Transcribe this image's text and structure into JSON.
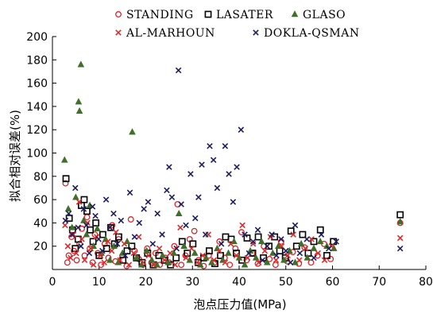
{
  "chart_data": {
    "type": "scatter",
    "title": "",
    "xlabel": "泡点压力值(MPa)",
    "ylabel": "拟合相对误差(%)",
    "xlim": [
      0,
      80
    ],
    "ylim": [
      0,
      200
    ],
    "xticks": [
      0,
      10,
      20,
      30,
      40,
      50,
      60,
      70,
      80
    ],
    "yticks": [
      20,
      40,
      60,
      80,
      100,
      120,
      140,
      160,
      180,
      200
    ],
    "grid": false,
    "legend_position": "top",
    "series": [
      {
        "name": "STANDING",
        "marker": "circle-open",
        "color": "#e0212b",
        "points": [
          [
            2.8,
            74
          ],
          [
            3.2,
            6
          ],
          [
            3.5,
            12
          ],
          [
            4.1,
            28
          ],
          [
            4.6,
            16
          ],
          [
            5.2,
            8
          ],
          [
            5.8,
            22
          ],
          [
            6.3,
            35
          ],
          [
            6.9,
            12
          ],
          [
            7.4,
            45
          ],
          [
            8.0,
            18
          ],
          [
            8.6,
            6
          ],
          [
            9.1,
            30
          ],
          [
            9.7,
            14
          ],
          [
            10.4,
            4
          ],
          [
            11.2,
            22
          ],
          [
            12.0,
            10
          ],
          [
            12.8,
            38
          ],
          [
            13.5,
            7
          ],
          [
            14.2,
            26
          ],
          [
            15.0,
            12
          ],
          [
            15.9,
            3
          ],
          [
            16.8,
            43
          ],
          [
            17.6,
            16
          ],
          [
            18.5,
            9
          ],
          [
            19.4,
            4
          ],
          [
            20.3,
            18
          ],
          [
            21.2,
            6
          ],
          [
            22.1,
            14
          ],
          [
            23.0,
            4
          ],
          [
            24.2,
            10
          ],
          [
            25.0,
            6
          ],
          [
            26.1,
            20
          ],
          [
            26.8,
            56
          ],
          [
            27.6,
            4
          ],
          [
            28.5,
            12
          ],
          [
            29.4,
            26
          ],
          [
            30.4,
            33
          ],
          [
            31.3,
            8
          ],
          [
            32.4,
            3
          ],
          [
            33.5,
            12
          ],
          [
            34.7,
            6
          ],
          [
            35.8,
            24
          ],
          [
            36.9,
            10
          ],
          [
            38.0,
            4
          ],
          [
            39.2,
            18
          ],
          [
            40.5,
            32
          ],
          [
            41.6,
            8
          ],
          [
            42.8,
            14
          ],
          [
            44.0,
            5
          ],
          [
            45.3,
            20
          ],
          [
            46.5,
            9
          ],
          [
            47.8,
            4
          ],
          [
            49.0,
            24
          ],
          [
            50.3,
            7
          ],
          [
            51.5,
            15
          ],
          [
            52.8,
            5
          ],
          [
            54.0,
            19
          ],
          [
            55.4,
            6
          ],
          [
            56.8,
            12
          ],
          [
            58.2,
            22
          ],
          [
            59.6,
            9
          ],
          [
            74.5,
            40
          ]
        ]
      },
      {
        "name": "LASATER",
        "marker": "square-open",
        "color": "#000000",
        "points": [
          [
            2.9,
            78
          ],
          [
            3.6,
            44
          ],
          [
            4.3,
            34
          ],
          [
            4.9,
            18
          ],
          [
            5.5,
            26
          ],
          [
            6.2,
            55
          ],
          [
            6.8,
            60
          ],
          [
            7.4,
            50
          ],
          [
            8.1,
            34
          ],
          [
            8.7,
            24
          ],
          [
            9.3,
            40
          ],
          [
            10.0,
            12
          ],
          [
            10.8,
            30
          ],
          [
            11.6,
            18
          ],
          [
            12.5,
            36
          ],
          [
            13.3,
            22
          ],
          [
            14.2,
            28
          ],
          [
            15.1,
            8
          ],
          [
            16.0,
            16
          ],
          [
            17.0,
            20
          ],
          [
            18.0,
            10
          ],
          [
            19.2,
            6
          ],
          [
            20.4,
            14
          ],
          [
            21.6,
            4
          ],
          [
            22.8,
            12
          ],
          [
            24.0,
            8
          ],
          [
            25.3,
            4
          ],
          [
            26.5,
            10
          ],
          [
            27.8,
            24
          ],
          [
            28.9,
            14
          ],
          [
            30.1,
            22
          ],
          [
            31.2,
            6
          ],
          [
            32.4,
            10
          ],
          [
            33.6,
            16
          ],
          [
            34.8,
            5
          ],
          [
            36.0,
            12
          ],
          [
            37.1,
            28
          ],
          [
            38.3,
            26
          ],
          [
            39.4,
            14
          ],
          [
            40.6,
            8
          ],
          [
            41.7,
            27
          ],
          [
            42.9,
            14
          ],
          [
            44.1,
            28
          ],
          [
            45.2,
            10
          ],
          [
            46.4,
            20
          ],
          [
            47.6,
            28
          ],
          [
            48.7,
            16
          ],
          [
            49.9,
            10
          ],
          [
            51.1,
            33
          ],
          [
            52.3,
            20
          ],
          [
            53.6,
            30
          ],
          [
            54.8,
            14
          ],
          [
            56.0,
            24
          ],
          [
            57.4,
            34
          ],
          [
            58.8,
            12
          ],
          [
            60.2,
            24
          ],
          [
            74.5,
            47
          ]
        ]
      },
      {
        "name": "GLASO",
        "marker": "triangle-filled",
        "color": "#3f6f2a",
        "points": [
          [
            2.6,
            94
          ],
          [
            3.4,
            52
          ],
          [
            4.2,
            36
          ],
          [
            5.0,
            62
          ],
          [
            5.6,
            144
          ],
          [
            5.8,
            136
          ],
          [
            6.1,
            176
          ],
          [
            6.7,
            42
          ],
          [
            7.3,
            30
          ],
          [
            8.0,
            55
          ],
          [
            8.8,
            20
          ],
          [
            9.6,
            35
          ],
          [
            10.5,
            14
          ],
          [
            11.4,
            26
          ],
          [
            12.3,
            8
          ],
          [
            13.2,
            20
          ],
          [
            14.1,
            6
          ],
          [
            15.0,
            14
          ],
          [
            16.0,
            24
          ],
          [
            17.1,
            118
          ],
          [
            18.0,
            10
          ],
          [
            19.1,
            4
          ],
          [
            20.2,
            16
          ],
          [
            21.3,
            8
          ],
          [
            22.4,
            4
          ],
          [
            23.6,
            12
          ],
          [
            24.8,
            6
          ],
          [
            26.0,
            14
          ],
          [
            27.1,
            48
          ],
          [
            28.2,
            20
          ],
          [
            29.4,
            8
          ],
          [
            30.5,
            14
          ],
          [
            31.7,
            4
          ],
          [
            32.9,
            10
          ],
          [
            34.1,
            6
          ],
          [
            35.3,
            18
          ],
          [
            36.5,
            8
          ],
          [
            37.7,
            14
          ],
          [
            38.9,
            24
          ],
          [
            40.0,
            10
          ],
          [
            41.2,
            4
          ],
          [
            42.4,
            16
          ],
          [
            43.6,
            10
          ],
          [
            44.8,
            24
          ],
          [
            46.0,
            6
          ],
          [
            47.2,
            14
          ],
          [
            48.4,
            20
          ],
          [
            49.6,
            8
          ],
          [
            50.8,
            16
          ],
          [
            52.0,
            6
          ],
          [
            53.3,
            22
          ],
          [
            54.6,
            10
          ],
          [
            56.0,
            18
          ],
          [
            57.4,
            24
          ],
          [
            58.8,
            20
          ],
          [
            60.3,
            18
          ],
          [
            74.5,
            41
          ]
        ]
      },
      {
        "name": "AL-MARHOUN",
        "marker": "x",
        "color": "#d62d2d",
        "points": [
          [
            2.7,
            38
          ],
          [
            3.3,
            20
          ],
          [
            3.9,
            10
          ],
          [
            4.5,
            30
          ],
          [
            5.1,
            14
          ],
          [
            5.7,
            58
          ],
          [
            6.3,
            26
          ],
          [
            6.9,
            8
          ],
          [
            7.5,
            40
          ],
          [
            8.2,
            18
          ],
          [
            8.8,
            4
          ],
          [
            9.5,
            28
          ],
          [
            10.3,
            12
          ],
          [
            11.1,
            6
          ],
          [
            11.9,
            24
          ],
          [
            12.7,
            16
          ],
          [
            13.6,
            32
          ],
          [
            14.5,
            8
          ],
          [
            15.4,
            22
          ],
          [
            16.4,
            4
          ],
          [
            17.4,
            14
          ],
          [
            18.5,
            28
          ],
          [
            19.5,
            6
          ],
          [
            20.6,
            12
          ],
          [
            21.7,
            4
          ],
          [
            22.9,
            18
          ],
          [
            24.0,
            8
          ],
          [
            25.2,
            14
          ],
          [
            26.3,
            4
          ],
          [
            27.4,
            36
          ],
          [
            28.6,
            10
          ],
          [
            29.8,
            18
          ],
          [
            31.0,
            6
          ],
          [
            32.2,
            12
          ],
          [
            33.4,
            30
          ],
          [
            34.6,
            8
          ],
          [
            35.8,
            16
          ],
          [
            37.0,
            6
          ],
          [
            38.2,
            22
          ],
          [
            39.4,
            12
          ],
          [
            40.7,
            38
          ],
          [
            41.8,
            10
          ],
          [
            43.0,
            22
          ],
          [
            44.2,
            6
          ],
          [
            45.5,
            16
          ],
          [
            46.7,
            28
          ],
          [
            47.9,
            8
          ],
          [
            49.1,
            20
          ],
          [
            50.4,
            12
          ],
          [
            51.6,
            30
          ],
          [
            52.9,
            8
          ],
          [
            54.2,
            18
          ],
          [
            55.5,
            26
          ],
          [
            56.9,
            14
          ],
          [
            58.3,
            8
          ],
          [
            59.8,
            20
          ],
          [
            74.5,
            27
          ]
        ]
      },
      {
        "name": "DOKLA-QSMAN",
        "marker": "x",
        "color": "#1f1f5f",
        "points": [
          [
            2.8,
            42
          ],
          [
            3.5,
            48
          ],
          [
            4.2,
            30
          ],
          [
            4.9,
            70
          ],
          [
            5.5,
            36
          ],
          [
            6.1,
            20
          ],
          [
            6.7,
            52
          ],
          [
            7.3,
            38
          ],
          [
            7.9,
            14
          ],
          [
            8.6,
            54
          ],
          [
            9.2,
            46
          ],
          [
            9.9,
            26
          ],
          [
            10.7,
            16
          ],
          [
            11.5,
            60
          ],
          [
            12.3,
            36
          ],
          [
            13.1,
            48
          ],
          [
            13.9,
            22
          ],
          [
            14.7,
            42
          ],
          [
            15.6,
            12
          ],
          [
            16.6,
            66
          ],
          [
            17.6,
            28
          ],
          [
            18.6,
            40
          ],
          [
            19.6,
            52
          ],
          [
            20.5,
            58
          ],
          [
            21.5,
            22
          ],
          [
            22.5,
            48
          ],
          [
            23.5,
            30
          ],
          [
            24.5,
            68
          ],
          [
            25.0,
            88
          ],
          [
            25.6,
            62
          ],
          [
            26.6,
            18
          ],
          [
            27.0,
            171
          ],
          [
            27.6,
            56
          ],
          [
            28.6,
            38
          ],
          [
            29.6,
            82
          ],
          [
            30.6,
            44
          ],
          [
            31.3,
            62
          ],
          [
            32.0,
            90
          ],
          [
            32.8,
            30
          ],
          [
            33.7,
            106
          ],
          [
            34.5,
            94
          ],
          [
            35.3,
            70
          ],
          [
            36.2,
            22
          ],
          [
            37.0,
            106
          ],
          [
            37.8,
            82
          ],
          [
            38.7,
            58
          ],
          [
            39.5,
            88
          ],
          [
            40.4,
            120
          ],
          [
            41.2,
            30
          ],
          [
            42.1,
            14
          ],
          [
            43.0,
            24
          ],
          [
            44.0,
            34
          ],
          [
            45.0,
            8
          ],
          [
            46.0,
            20
          ],
          [
            47.0,
            30
          ],
          [
            48.0,
            12
          ],
          [
            49.0,
            26
          ],
          [
            50.0,
            16
          ],
          [
            51.0,
            6
          ],
          [
            52.0,
            38
          ],
          [
            53.0,
            14
          ],
          [
            54.5,
            26
          ],
          [
            56.0,
            10
          ],
          [
            57.6,
            30
          ],
          [
            59.2,
            18
          ],
          [
            60.8,
            24
          ],
          [
            74.5,
            18
          ]
        ]
      }
    ]
  }
}
